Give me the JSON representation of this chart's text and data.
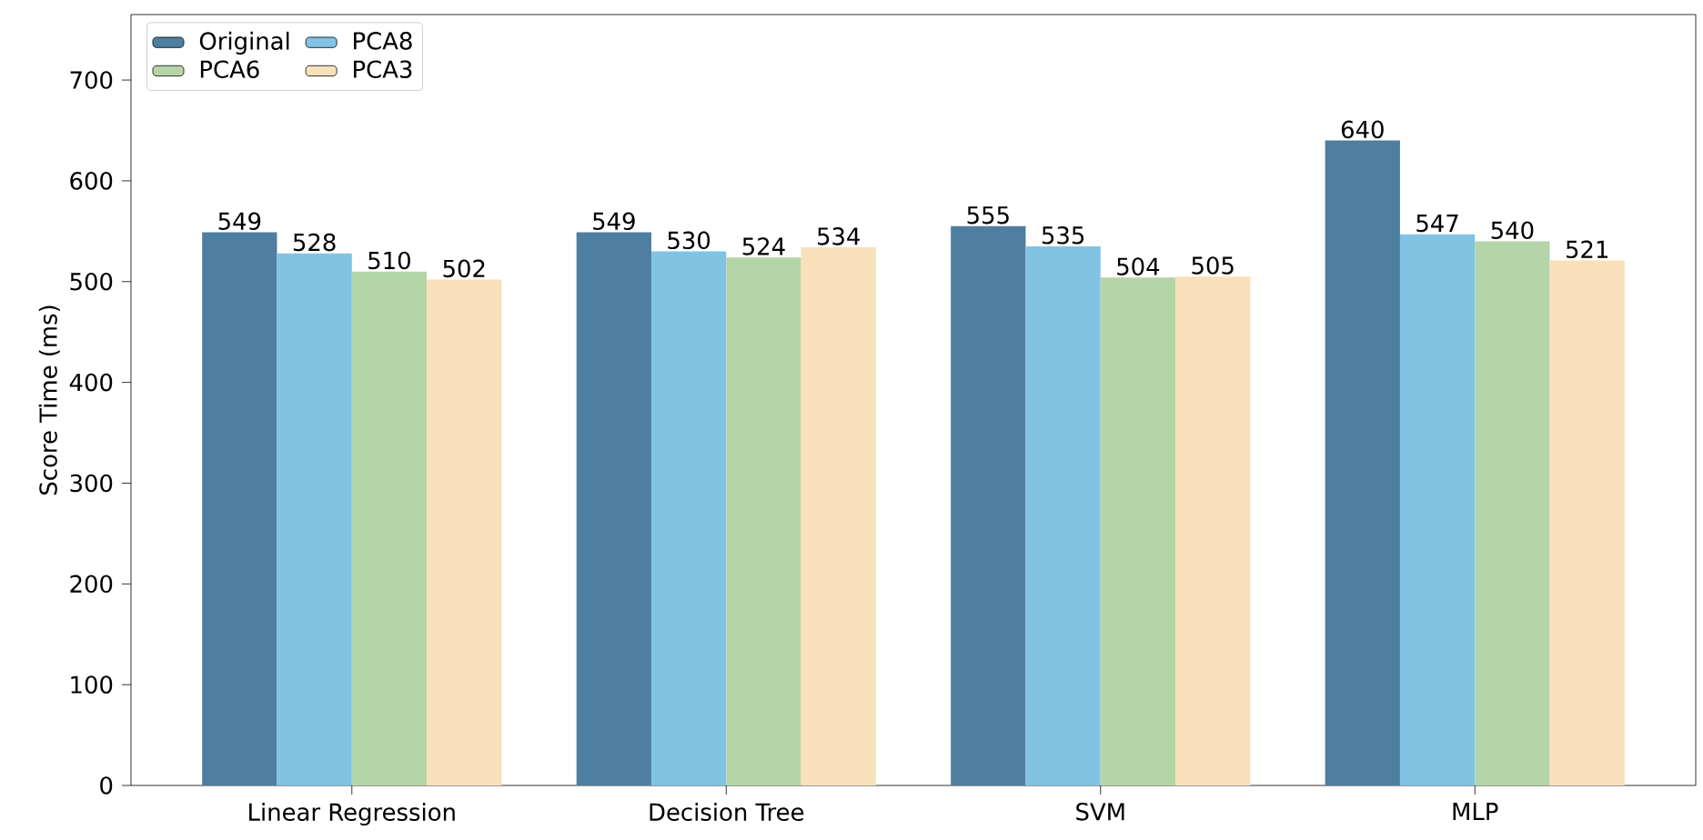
{
  "chart_data": {
    "type": "bar",
    "ylabel": "Score Time (ms)",
    "categories": [
      "Linear Regression",
      "Decision Tree",
      "SVM",
      "MLP"
    ],
    "series": [
      {
        "name": "Original",
        "color": "#4e7fa1",
        "values": [
          549,
          549,
          555,
          640
        ]
      },
      {
        "name": "PCA8",
        "color": "#82c3e4",
        "values": [
          528,
          530,
          535,
          547
        ]
      },
      {
        "name": "PCA6",
        "color": "#b3d5a8",
        "values": [
          510,
          524,
          504,
          540
        ]
      },
      {
        "name": "PCA3",
        "color": "#f8e0bb",
        "values": [
          502,
          534,
          505,
          521
        ]
      }
    ],
    "ylim": [
      0,
      765
    ],
    "yticks": [
      0,
      100,
      200,
      300,
      400,
      500,
      600,
      700
    ],
    "data_labels": true,
    "legend": "top left",
    "grid": false
  }
}
